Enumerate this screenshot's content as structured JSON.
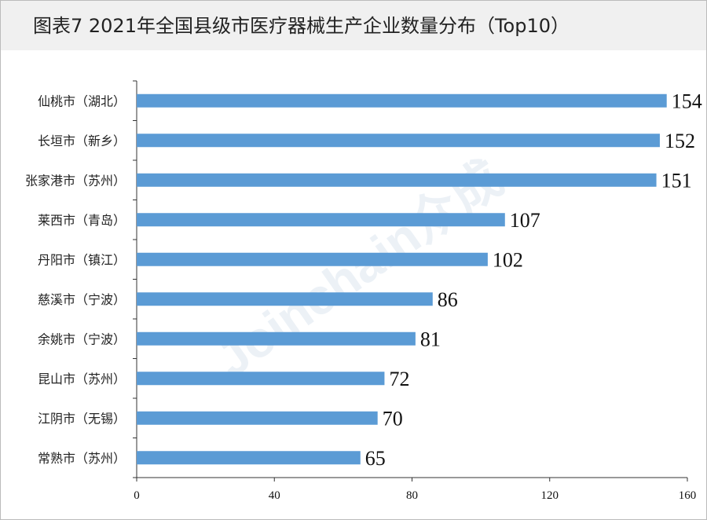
{
  "chart_data": {
    "type": "bar",
    "orientation": "horizontal",
    "title": "图表7  2021年全国县级市医疗器械生产企业数量分布（Top10）",
    "watermark": "Joinchain众成",
    "categories": [
      "仙桃市（湖北）",
      "长垣市（新乡）",
      "张家港市（苏州）",
      "莱西市（青岛）",
      "丹阳市（镇江）",
      "慈溪市（宁波）",
      "余姚市（宁波）",
      "昆山市（苏州）",
      "江阴市（无锡）",
      "常熟市（苏州）"
    ],
    "values": [
      154,
      152,
      151,
      107,
      102,
      86,
      81,
      72,
      70,
      65
    ],
    "color": "#5b9bd5",
    "xlim": [
      0,
      160
    ],
    "xticks": [
      0,
      40,
      80,
      120,
      160
    ],
    "grid": false
  }
}
